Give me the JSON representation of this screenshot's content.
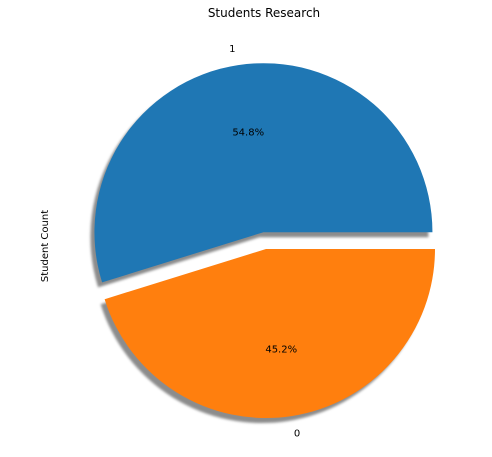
{
  "chart_data": {
    "type": "pie",
    "title": "Students Research",
    "ylabel": "Student Count",
    "slices": [
      {
        "label": "1",
        "value": 54.8,
        "pct_label": "54.8%",
        "color": "#1f77b4",
        "exploded": true
      },
      {
        "label": "0",
        "value": 45.2,
        "pct_label": "45.2%",
        "color": "#ff7f0e",
        "exploded": false
      }
    ],
    "shadow": true,
    "start_angle_deg": 0,
    "direction": "counterclockwise"
  }
}
